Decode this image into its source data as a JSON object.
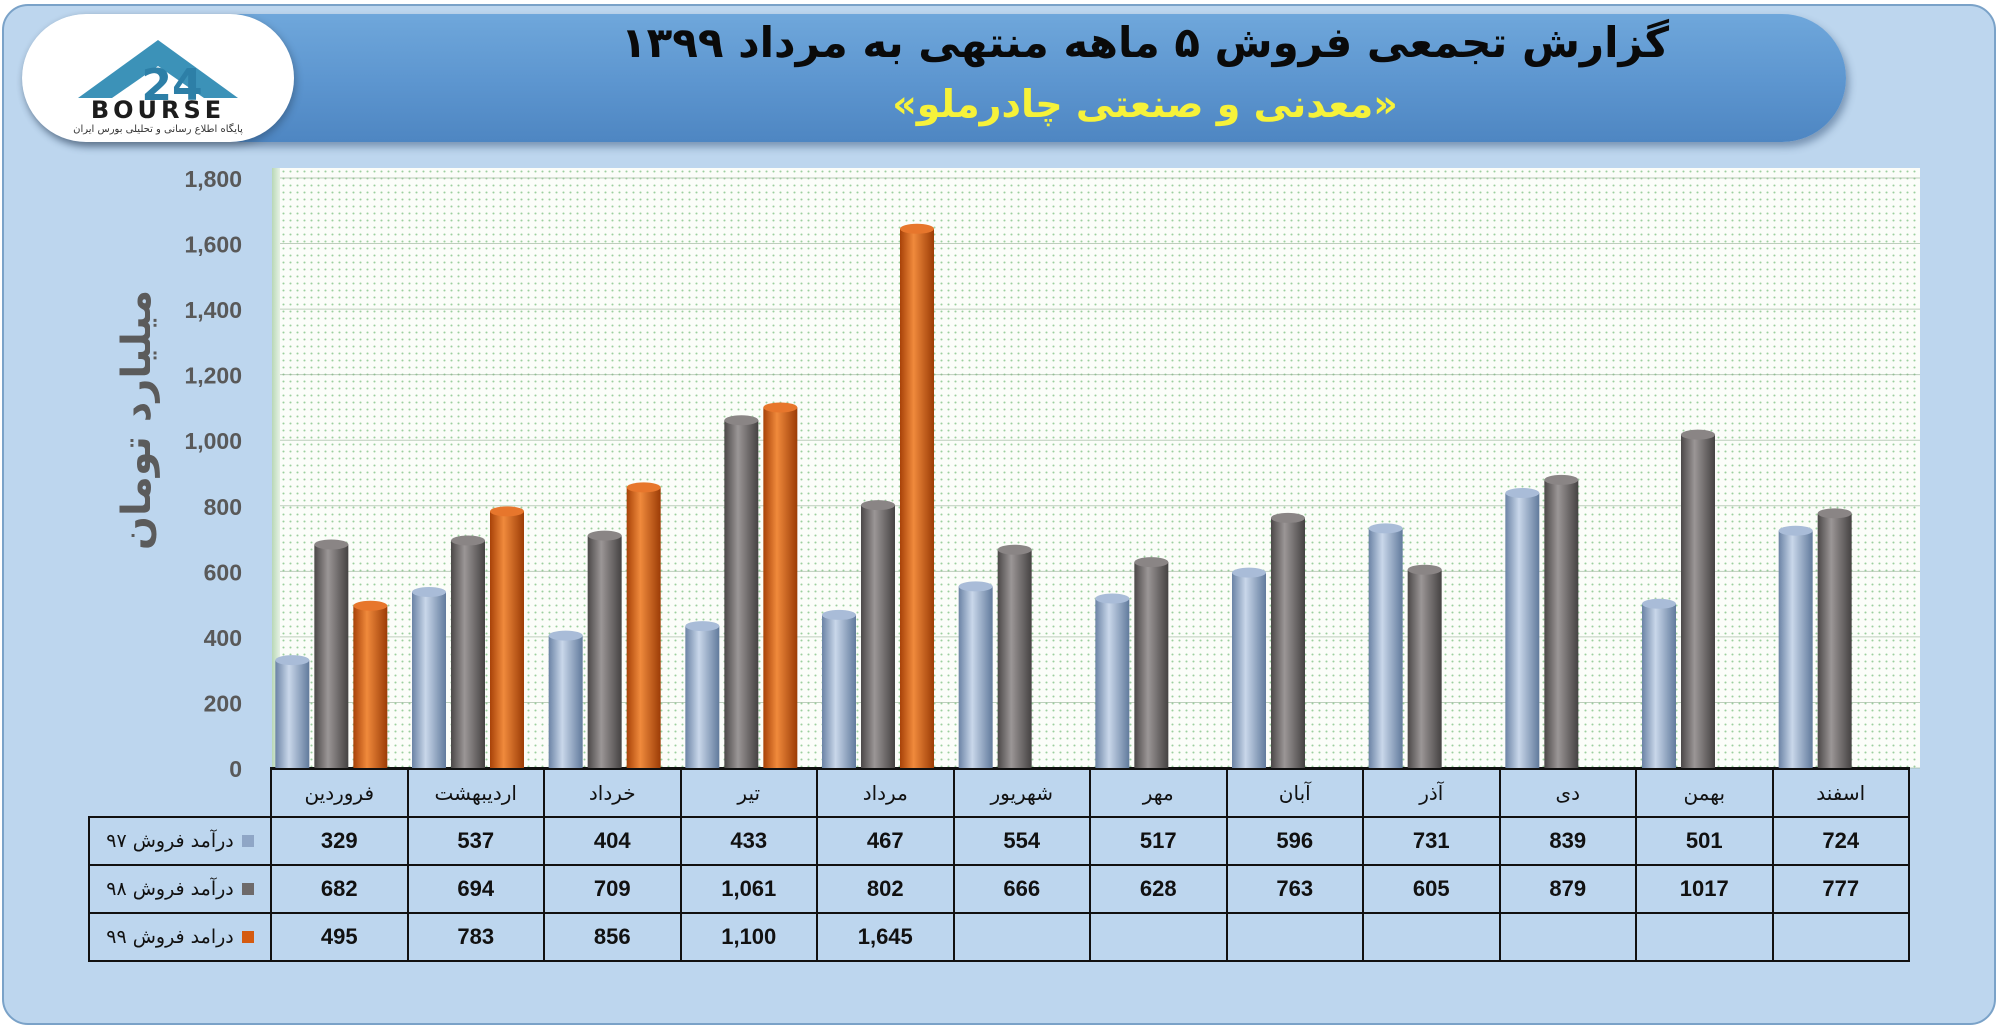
{
  "colors": {
    "s97": "#8fa6c6",
    "s98": "#6e6a6a",
    "s99": "#d55b10"
  },
  "header": {
    "title": "گزارش تجمعی فروش ۵ ماهه منتهی به مرداد ۱۳۹۹",
    "subtitle": "«معدنی و صنعتی چادرملو»"
  },
  "logo": {
    "text": "BOURSE",
    "tagline": "پایگاه اطلاع رسانی و تحلیلی بورس ایران",
    "icon": "24-logo-icon"
  },
  "chart_data": {
    "type": "bar",
    "ylabel": "میلیارد تومان",
    "ylim": [
      0,
      1800
    ],
    "yticks": [
      "0",
      "200",
      "400",
      "600",
      "800",
      "1,000",
      "1,200",
      "1,400",
      "1,600",
      "1,800"
    ],
    "grid": true,
    "legend": "table-left",
    "categories": [
      "فروردین",
      "اردیبهشت",
      "خرداد",
      "تیر",
      "مرداد",
      "شهریور",
      "مهر",
      "آبان",
      "آذر",
      "دی",
      "بهمن",
      "اسفند"
    ],
    "series": [
      {
        "name": "درآمد فروش ۹۷",
        "color": "#8fa6c6",
        "values": [
          329,
          537,
          404,
          433,
          467,
          554,
          517,
          596,
          731,
          839,
          501,
          724
        ],
        "labels": [
          "329",
          "537",
          "404",
          "433",
          "467",
          "554",
          "517",
          "596",
          "731",
          "839",
          "501",
          "724"
        ]
      },
      {
        "name": "درآمد فروش ۹۸",
        "color": "#6e6a6a",
        "values": [
          682,
          694,
          709,
          1061,
          802,
          666,
          628,
          763,
          605,
          879,
          1017,
          777
        ],
        "labels": [
          "682",
          "694",
          "709",
          "1,061",
          "802",
          "666",
          "628",
          "763",
          "605",
          "879",
          "1017",
          "777"
        ]
      },
      {
        "name": "درامد فروش ۹۹",
        "color": "#d55b10",
        "values": [
          495,
          783,
          856,
          1100,
          1645,
          null,
          null,
          null,
          null,
          null,
          null,
          null
        ],
        "labels": [
          "495",
          "783",
          "856",
          "1,100",
          "1,645",
          "",
          "",
          "",
          "",
          "",
          "",
          ""
        ]
      }
    ]
  }
}
